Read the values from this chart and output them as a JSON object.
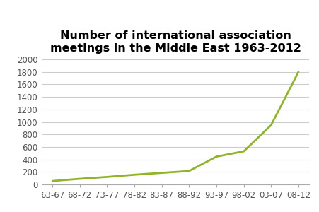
{
  "title": "Number of international association\nmeetings in the Middle East 1963-2012",
  "x_labels": [
    "63-67",
    "68-72",
    "73-77",
    "78-82",
    "83-87",
    "88-92",
    "93-97",
    "98-02",
    "03-07",
    "08-12"
  ],
  "y_values": [
    55,
    90,
    120,
    155,
    185,
    215,
    445,
    530,
    950,
    1800
  ],
  "line_color": "#8db526",
  "line_width": 2.0,
  "ylim": [
    0,
    2000
  ],
  "yticks": [
    0,
    200,
    400,
    600,
    800,
    1000,
    1200,
    1400,
    1600,
    1800,
    2000
  ],
  "background_color": "#ffffff",
  "grid_color": "#cccccc",
  "title_fontsize": 11.5,
  "tick_fontsize": 8.5
}
